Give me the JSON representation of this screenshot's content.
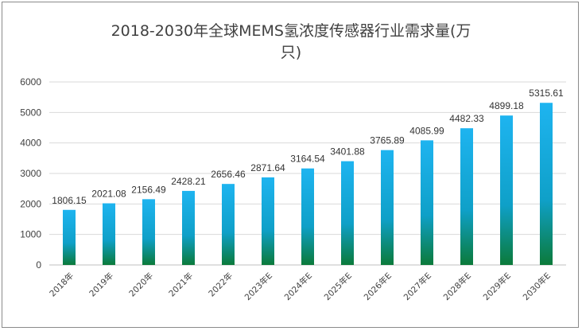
{
  "chart_data": {
    "type": "bar",
    "title_line1": "2018-2030年全球MEMS氢浓度传感器行业需求量(万",
    "title_line2": "只)",
    "categories": [
      "2018年",
      "2019年",
      "2020年",
      "2021年",
      "2022年",
      "2023年E",
      "2024年E",
      "2025年E",
      "2026年E",
      "2027年E",
      "2028年E",
      "2029年E",
      "2030年E"
    ],
    "values": [
      1806.15,
      2021.08,
      2156.49,
      2428.21,
      2656.46,
      2871.64,
      3164.54,
      3401.88,
      3765.89,
      4085.99,
      4482.33,
      4899.18,
      5315.61
    ],
    "data_labels": [
      "1806.15",
      "2021.08",
      "2156.49",
      "2428.21",
      "2656.46",
      "2871.64",
      "3164.54",
      "3401.88",
      "3765.89",
      "4085.99",
      "4482.33",
      "4899.18",
      "5315.61"
    ],
    "yticks": [
      "0",
      "1000",
      "2000",
      "3000",
      "4000",
      "5000",
      "6000"
    ],
    "ylim": [
      0,
      6000
    ],
    "grid": true,
    "legend": "none",
    "bar_gradient": {
      "top": "#1eb4f0",
      "mid": "#0fa0c8",
      "bottom": "#0b7a3a"
    }
  }
}
